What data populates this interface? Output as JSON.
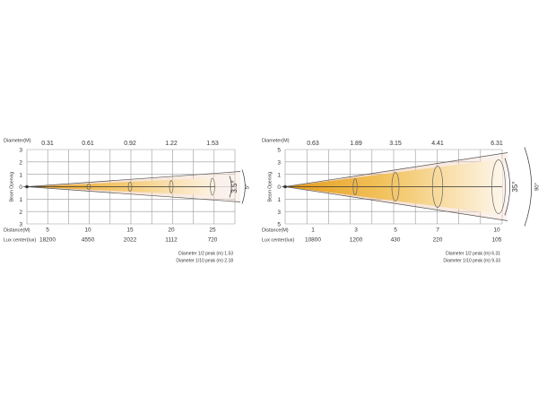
{
  "panels": [
    {
      "diameter_label": "Diameter(M)",
      "diameters": [
        "0.31",
        "0.61",
        "0.92",
        "1.22",
        "1.53"
      ],
      "rows": [
        "3",
        "2",
        "1",
        "0",
        "1",
        "2",
        "3"
      ],
      "axis_label": "Beam Opening",
      "distance_label": "Distance(M)",
      "distances": [
        "5",
        "10",
        "15",
        "20",
        "25"
      ],
      "lux_label": "Lux center(lux)",
      "lux": [
        "18200",
        "4550",
        "2022",
        "1112",
        "720"
      ],
      "notes": [
        "Diameter 1/2 peak (m) 1.53",
        "Diameter 1/10 peak (m) 2.18"
      ],
      "angles": [
        "3.5°",
        "5°"
      ]
    },
    {
      "diameter_label": "Diameter(M)",
      "diameters": [
        "0.63",
        "1.89",
        "3.15",
        "4.41",
        "6.31"
      ],
      "rows": [
        "5",
        "3",
        "1",
        "0",
        "1",
        "3",
        "5"
      ],
      "axis_label": "Beam Opening",
      "distance_label": "Distance(M)",
      "distances": [
        "1",
        "3",
        "5",
        "7",
        "10"
      ],
      "lux_label": "Lux center(lux)",
      "lux": [
        "10800",
        "1200",
        "430",
        "220",
        "105"
      ],
      "notes": [
        "Diameter 1/2 peak (m) 6.31",
        "Diameter 1/10 peak (m) 9.33"
      ],
      "angles": [
        "35°",
        "90°"
      ]
    }
  ]
}
